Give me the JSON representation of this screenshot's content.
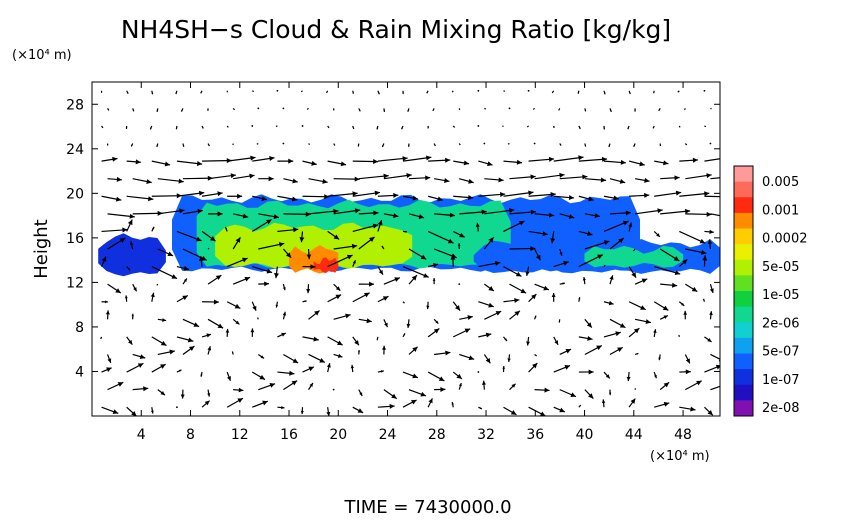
{
  "chart_data": {
    "type": "heatmap",
    "title": "NH4SH−s Cloud & Rain Mixing Ratio [kg/kg]",
    "ylabel": "Height",
    "y_unit": "(×10⁴ m)",
    "x_unit": "(×10⁴ m)",
    "xlim": [
      0,
      51
    ],
    "ylim": [
      0,
      30
    ],
    "x_ticks": [
      "4",
      "8",
      "12",
      "16",
      "20",
      "24",
      "28",
      "32",
      "36",
      "40",
      "44",
      "48"
    ],
    "y_ticks": [
      "4",
      "8",
      "12",
      "16",
      "20",
      "24",
      "28"
    ],
    "grid": false,
    "legend_position": "right",
    "colorbar": {
      "labels": [
        "0.005",
        "0.001",
        "0.0002",
        "5e-05",
        "1e-05",
        "2e-06",
        "5e-07",
        "1e-07",
        "2e-08"
      ],
      "colors": [
        "#ff9a9a",
        "#ff6a5a",
        "#ff2a10",
        "#ff8c00",
        "#ffcc00",
        "#e8f000",
        "#b0f000",
        "#60e020",
        "#10d040",
        "#10d890",
        "#10d0d0",
        "#10a0f0",
        "#1060ff",
        "#1030e0",
        "#2010c0",
        "#8010b0"
      ]
    },
    "cloud_regions": [
      {
        "x0": 0.5,
        "x1": 6.0,
        "y0": 12.8,
        "y1": 16.0,
        "level": 13
      },
      {
        "x0": 6.5,
        "x1": 44.5,
        "y0": 13.2,
        "y1": 19.5,
        "level": 12
      },
      {
        "x0": 8.5,
        "x1": 34.0,
        "y0": 13.5,
        "y1": 19.0,
        "level": 9
      },
      {
        "x0": 10.0,
        "x1": 26.0,
        "y0": 13.5,
        "y1": 17.0,
        "level": 6
      },
      {
        "x0": 16.0,
        "x1": 20.0,
        "y0": 13.0,
        "y1": 15.0,
        "level": 3
      },
      {
        "x0": 18.0,
        "x1": 20.0,
        "y0": 13.0,
        "y1": 14.0,
        "level": 2
      },
      {
        "x0": 31.0,
        "x1": 51.0,
        "y0": 13.0,
        "y1": 15.5,
        "level": 12
      },
      {
        "x0": 40.0,
        "x1": 48.0,
        "y0": 13.5,
        "y1": 15.0,
        "level": 9
      }
    ],
    "time_label": "TIME  =  7430000.0"
  }
}
